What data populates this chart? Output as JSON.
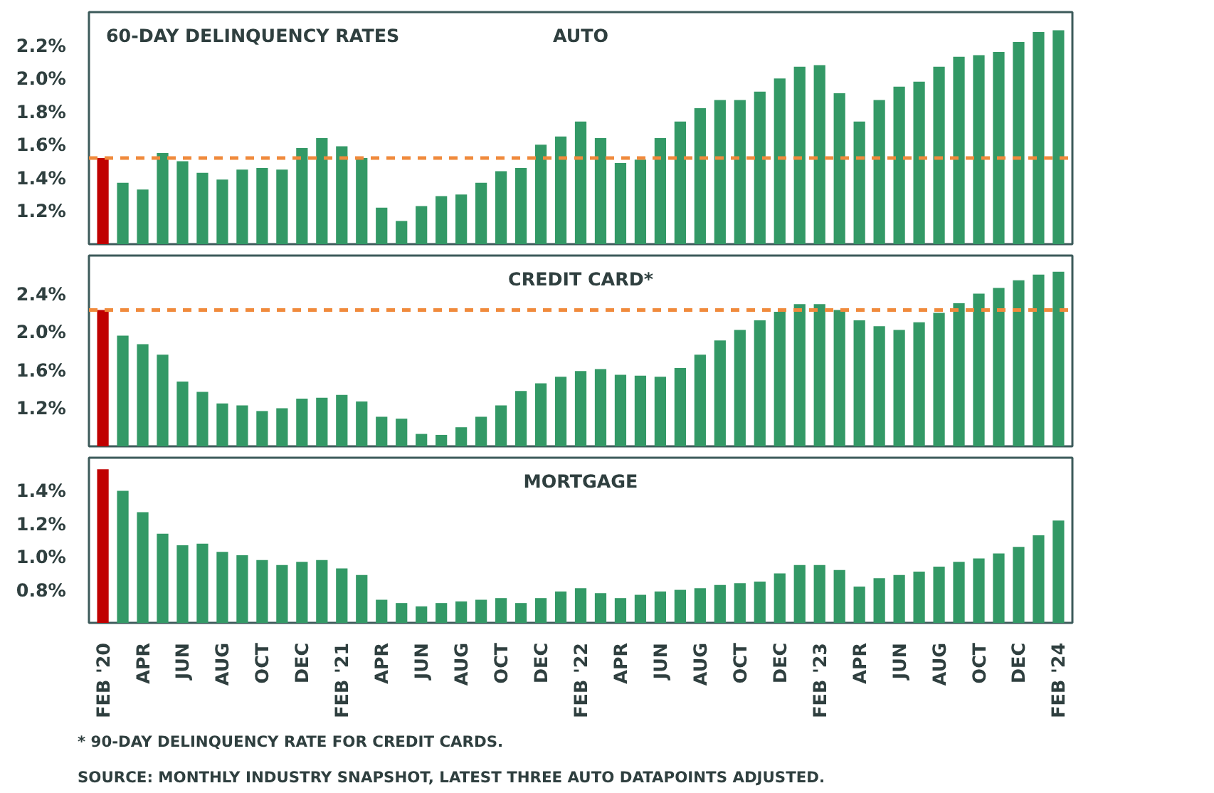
{
  "chart_data": [
    {
      "type": "bar",
      "title": "AUTO",
      "subtitle": "60-DAY DELINQUENCY RATES",
      "values": [
        1.52,
        1.37,
        1.33,
        1.55,
        1.5,
        1.43,
        1.39,
        1.45,
        1.46,
        1.45,
        1.58,
        1.64,
        1.59,
        1.52,
        1.22,
        1.14,
        1.23,
        1.29,
        1.3,
        1.37,
        1.44,
        1.46,
        1.6,
        1.65,
        1.74,
        1.64,
        1.49,
        1.51,
        1.64,
        1.74,
        1.82,
        1.87,
        1.87,
        1.92,
        2.0,
        2.07,
        2.08,
        1.91,
        1.74,
        1.87,
        1.95,
        1.98,
        2.07,
        2.13,
        2.14,
        2.16,
        2.22,
        2.28,
        2.29
      ],
      "colors": [
        "#c00000",
        "#339966",
        "#339966",
        "#339966",
        "#339966",
        "#339966",
        "#339966",
        "#339966",
        "#339966",
        "#339966",
        "#339966",
        "#339966",
        "#339966",
        "#339966",
        "#339966",
        "#339966",
        "#339966",
        "#339966",
        "#339966",
        "#339966",
        "#339966",
        "#339966",
        "#339966",
        "#339966",
        "#339966",
        "#339966",
        "#339966",
        "#339966",
        "#339966",
        "#339966",
        "#339966",
        "#339966",
        "#339966",
        "#339966",
        "#339966",
        "#339966",
        "#339966",
        "#339966",
        "#339966",
        "#339966",
        "#339966",
        "#339966",
        "#339966",
        "#339966",
        "#339966",
        "#339966",
        "#339966",
        "#339966",
        "#339966"
      ],
      "ylim": [
        1.0,
        2.4
      ],
      "yticks": [
        {
          "value": 1.2,
          "label": "1.2%"
        },
        {
          "value": 1.4,
          "label": "1.4%"
        },
        {
          "value": 1.6,
          "label": "1.6%"
        },
        {
          "value": 1.8,
          "label": "1.8%"
        },
        {
          "value": 2.0,
          "label": "2.0%"
        },
        {
          "value": 2.2,
          "label": "2.2%"
        }
      ],
      "ref_lines": [
        {
          "axis": "y",
          "value": 1.52,
          "color": "#f08a3c",
          "line_style": "dashed"
        }
      ],
      "tick_labels": "y"
    },
    {
      "type": "bar",
      "title": "CREDIT CARD*",
      "values": [
        2.23,
        1.96,
        1.87,
        1.76,
        1.48,
        1.37,
        1.25,
        1.23,
        1.17,
        1.2,
        1.3,
        1.31,
        1.34,
        1.27,
        1.11,
        1.09,
        0.93,
        0.92,
        1.0,
        1.11,
        1.23,
        1.38,
        1.46,
        1.53,
        1.59,
        1.61,
        1.55,
        1.54,
        1.53,
        1.62,
        1.76,
        1.91,
        2.02,
        2.12,
        2.21,
        2.29,
        2.29,
        2.23,
        2.12,
        2.06,
        2.02,
        2.1,
        2.2,
        2.3,
        2.4,
        2.46,
        2.54,
        2.6,
        2.63
      ],
      "colors": [
        "#c00000",
        "#339966",
        "#339966",
        "#339966",
        "#339966",
        "#339966",
        "#339966",
        "#339966",
        "#339966",
        "#339966",
        "#339966",
        "#339966",
        "#339966",
        "#339966",
        "#339966",
        "#339966",
        "#339966",
        "#339966",
        "#339966",
        "#339966",
        "#339966",
        "#339966",
        "#339966",
        "#339966",
        "#339966",
        "#339966",
        "#339966",
        "#339966",
        "#339966",
        "#339966",
        "#339966",
        "#339966",
        "#339966",
        "#339966",
        "#339966",
        "#339966",
        "#339966",
        "#339966",
        "#339966",
        "#339966",
        "#339966",
        "#339966",
        "#339966",
        "#339966",
        "#339966",
        "#339966",
        "#339966",
        "#339966",
        "#339966"
      ],
      "ylim": [
        0.8,
        2.8
      ],
      "yticks": [
        {
          "value": 1.2,
          "label": "1.2%"
        },
        {
          "value": 1.6,
          "label": "1.6%"
        },
        {
          "value": 2.0,
          "label": "2.0%"
        },
        {
          "value": 2.4,
          "label": "2.4%"
        }
      ],
      "ref_lines": [
        {
          "axis": "y",
          "value": 2.23,
          "color": "#f08a3c",
          "line_style": "dashed"
        }
      ],
      "tick_labels": "y"
    },
    {
      "type": "bar",
      "title": "MORTGAGE",
      "categories": [
        "FEB '20",
        null,
        "APR",
        null,
        "JUN",
        null,
        "AUG",
        null,
        "OCT",
        null,
        "DEC",
        null,
        "FEB '21",
        null,
        "APR",
        null,
        "JUN",
        null,
        "AUG",
        null,
        "OCT",
        null,
        "DEC",
        null,
        "FEB '22",
        null,
        "APR",
        null,
        "JUN",
        null,
        "AUG",
        null,
        "OCT",
        null,
        "DEC",
        null,
        "FEB '23",
        null,
        "APR",
        null,
        "JUN",
        null,
        "AUG",
        null,
        "OCT",
        null,
        "DEC",
        null,
        "FEB '24"
      ],
      "values": [
        1.53,
        1.4,
        1.27,
        1.14,
        1.07,
        1.08,
        1.03,
        1.01,
        0.98,
        0.95,
        0.97,
        0.98,
        0.93,
        0.89,
        0.74,
        0.72,
        0.7,
        0.72,
        0.73,
        0.74,
        0.75,
        0.72,
        0.75,
        0.79,
        0.81,
        0.78,
        0.75,
        0.77,
        0.79,
        0.8,
        0.81,
        0.83,
        0.84,
        0.85,
        0.9,
        0.95,
        0.95,
        0.92,
        0.82,
        0.87,
        0.89,
        0.91,
        0.94,
        0.97,
        0.99,
        1.02,
        1.06,
        1.13,
        1.22
      ],
      "colors": [
        "#c00000",
        "#339966",
        "#339966",
        "#339966",
        "#339966",
        "#339966",
        "#339966",
        "#339966",
        "#339966",
        "#339966",
        "#339966",
        "#339966",
        "#339966",
        "#339966",
        "#339966",
        "#339966",
        "#339966",
        "#339966",
        "#339966",
        "#339966",
        "#339966",
        "#339966",
        "#339966",
        "#339966",
        "#339966",
        "#339966",
        "#339966",
        "#339966",
        "#339966",
        "#339966",
        "#339966",
        "#339966",
        "#339966",
        "#339966",
        "#339966",
        "#339966",
        "#339966",
        "#339966",
        "#339966",
        "#339966",
        "#339966",
        "#339966",
        "#339966",
        "#339966",
        "#339966",
        "#339966",
        "#339966",
        "#339966",
        "#339966"
      ],
      "ylim": [
        0.6,
        1.6
      ],
      "yticks": [
        {
          "value": 0.8,
          "label": "0.8%"
        },
        {
          "value": 1.0,
          "label": "1.0%"
        },
        {
          "value": 1.2,
          "label": "1.2%"
        },
        {
          "value": 1.4,
          "label": "1.4%"
        }
      ],
      "annotations": [
        "* 90-DAY DELINQUENCY RATE FOR CREDIT CARDS.",
        "SOURCE: MONTHLY INDUSTRY SNAPSHOT, LATEST THREE AUTO DATAPOINTS ADJUSTED."
      ]
    }
  ]
}
